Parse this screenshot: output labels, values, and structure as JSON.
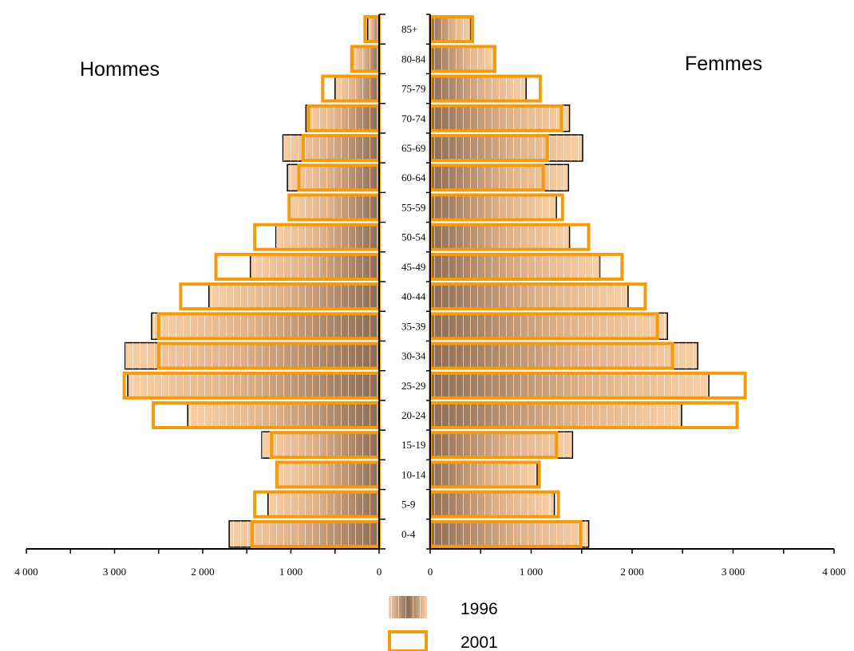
{
  "chart_data": {
    "type": "bar",
    "orientation": "horizontal-pyramid",
    "left_title": "Hommes",
    "right_title": "Femmes",
    "categories": [
      "0-4",
      "5-9",
      "10-14",
      "15-19",
      "20-24",
      "25-29",
      "30-34",
      "35-39",
      "40-44",
      "45-49",
      "50-54",
      "55-59",
      "60-64",
      "65-69",
      "70-74",
      "75-79",
      "80-84",
      "85+"
    ],
    "series": [
      {
        "name": "1996",
        "style": "gradient-fill",
        "colors": [
          "#f9cfa4",
          "#8d6b52"
        ],
        "hommes": [
          1700,
          1260,
          1160,
          1330,
          2170,
          2850,
          2880,
          2580,
          1930,
          1460,
          1170,
          1020,
          1040,
          1090,
          830,
          500,
          300,
          130
        ],
        "femmes": [
          1570,
          1230,
          1060,
          1410,
          2490,
          2760,
          2650,
          2350,
          1960,
          1680,
          1380,
          1250,
          1370,
          1510,
          1380,
          950,
          630,
          400
        ]
      },
      {
        "name": "2001",
        "style": "outline",
        "colors": [
          "#f49b0b"
        ],
        "hommes": [
          1440,
          1410,
          1160,
          1220,
          2560,
          2890,
          2500,
          2500,
          2250,
          1850,
          1410,
          1020,
          910,
          860,
          800,
          640,
          310,
          160
        ],
        "femmes": [
          1490,
          1270,
          1080,
          1250,
          3040,
          3120,
          2400,
          2250,
          2130,
          1900,
          1570,
          1310,
          1120,
          1160,
          1300,
          1090,
          640,
          420
        ]
      }
    ],
    "left_axis": {
      "ticks": [
        4000,
        3000,
        2000,
        1000,
        0
      ],
      "tick_labels": [
        "4 000",
        "3 000",
        "2 000",
        "1 000",
        "0"
      ],
      "range": [
        0,
        4000
      ]
    },
    "right_axis": {
      "ticks": [
        0,
        1000,
        2000,
        3000,
        4000
      ],
      "tick_labels": [
        "0",
        "1 000",
        "2 000",
        "3 000",
        "4 000"
      ],
      "range": [
        0,
        4000
      ]
    },
    "legend": {
      "placement": "bottom-center",
      "entries": [
        "1996",
        "2001"
      ]
    },
    "grid": false
  }
}
